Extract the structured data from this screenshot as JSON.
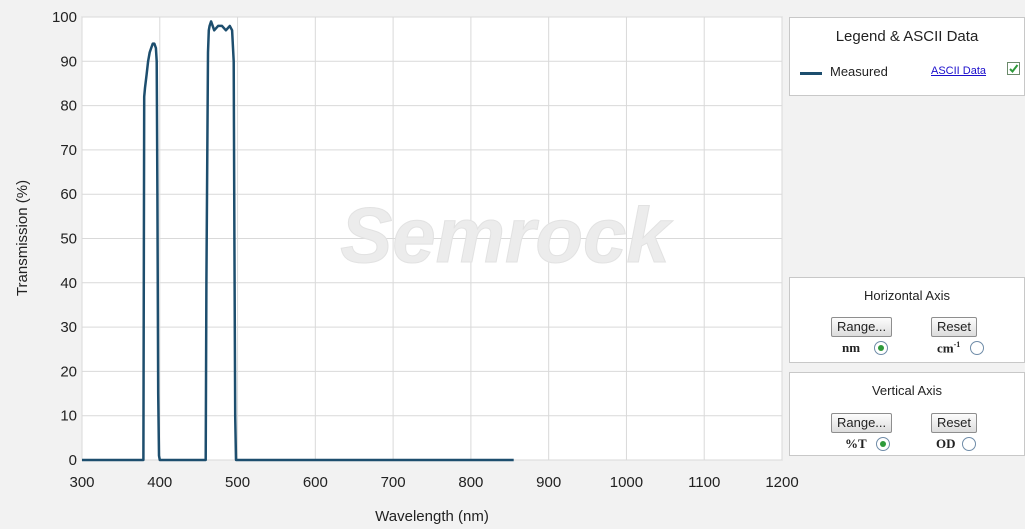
{
  "chart_data": {
    "type": "line",
    "title": "",
    "xlabel": "Wavelength (nm)",
    "ylabel": "Transmission (%)",
    "xlim": [
      300,
      1200
    ],
    "ylim": [
      0,
      100
    ],
    "x_ticks": [
      300,
      400,
      500,
      600,
      700,
      800,
      900,
      1000,
      1100,
      1200
    ],
    "y_ticks": [
      0,
      10,
      20,
      30,
      40,
      50,
      60,
      70,
      80,
      90,
      100
    ],
    "grid": true,
    "legend_position": "right",
    "series": [
      {
        "name": "Measured",
        "color": "#1d4e6e",
        "x": [
          300,
          379,
          380,
          381,
          383,
          385,
          387,
          389,
          391,
          393,
          395,
          396,
          397,
          398,
          399,
          400,
          459,
          460,
          462,
          463,
          464,
          466,
          468,
          470,
          475,
          480,
          485,
          490,
          493,
          495,
          496,
          497,
          498,
          855
        ],
        "y": [
          0,
          0,
          82,
          84,
          87,
          90,
          92,
          93,
          94,
          94,
          93,
          90,
          60,
          15,
          1,
          0,
          0,
          40,
          92,
          97,
          98,
          99,
          98,
          97,
          98,
          98,
          97,
          98,
          97,
          90,
          50,
          10,
          0,
          0
        ]
      }
    ]
  },
  "watermark": "Semrock",
  "legend": {
    "title": "Legend & ASCII Data",
    "series_label": "Measured",
    "ascii_link": "ASCII Data",
    "checked": true
  },
  "horizontal_axis": {
    "title": "Horizontal Axis",
    "range_label": "Range...",
    "reset_label": "Reset",
    "unit_nm": "nm",
    "unit_cm": "cm",
    "unit_cm_sup": "-1",
    "selected": "nm"
  },
  "vertical_axis": {
    "title": "Vertical  Axis",
    "range_label": "Range...",
    "reset_label": "Reset",
    "unit_t": "%T",
    "unit_od": "OD",
    "selected": "%T"
  }
}
